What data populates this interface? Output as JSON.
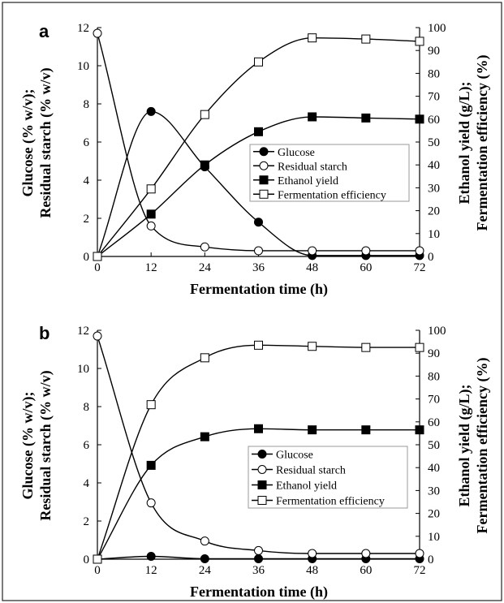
{
  "figure": {
    "border_color": "#222222"
  },
  "chart_data": [
    {
      "type": "line",
      "panel_label": "a",
      "xlabel": "Fermentation time (h)",
      "ylabel_left": [
        "Glucose (% w/v);",
        "Residual starch (% w/v)"
      ],
      "ylabel_right": [
        "Ethanol yield (g/L);",
        "Fermentation efficiency (%)"
      ],
      "x": [
        0,
        12,
        24,
        36,
        48,
        60,
        72
      ],
      "xlim": [
        0,
        72
      ],
      "xticks": [
        "0",
        "12",
        "24",
        "36",
        "48",
        "60",
        "72"
      ],
      "ylim_left": [
        0,
        12
      ],
      "yticks_left": [
        "0",
        "2",
        "4",
        "6",
        "8",
        "10",
        "12"
      ],
      "ylim_right": [
        0,
        100
      ],
      "yticks_right": [
        "0",
        "10",
        "20",
        "30",
        "40",
        "50",
        "60",
        "70",
        "80",
        "90",
        "100"
      ],
      "legend_position": "center-right",
      "series": [
        {
          "name": "Glucose",
          "axis": "left",
          "marker": "filled-circle",
          "values": [
            0,
            7.6,
            4.7,
            1.8,
            0.05,
            0.05,
            0.05
          ]
        },
        {
          "name": "Residual starch",
          "axis": "left",
          "marker": "open-circle",
          "values": [
            11.7,
            1.6,
            0.5,
            0.3,
            0.3,
            0.3,
            0.3
          ]
        },
        {
          "name": "Ethanol yield",
          "axis": "right",
          "marker": "filled-square",
          "values": [
            0,
            18.5,
            40,
            54.5,
            61,
            60.5,
            60
          ]
        },
        {
          "name": "Fermentation efficiency",
          "axis": "right",
          "marker": "open-square",
          "values": [
            0,
            29.5,
            62,
            85,
            95.5,
            95,
            94
          ]
        }
      ]
    },
    {
      "type": "line",
      "panel_label": "b",
      "xlabel": "Fermentation time (h)",
      "ylabel_left": [
        "Glucose (%  w/v);",
        "Residual starch (%  w/v)"
      ],
      "ylabel_right": [
        "Ethanol yield (g/L);",
        "Fermentation efficiency (%)"
      ],
      "x": [
        0,
        12,
        24,
        36,
        48,
        60,
        72
      ],
      "xlim": [
        0,
        72
      ],
      "xticks": [
        "0",
        "12",
        "24",
        "36",
        "48",
        "60",
        "72"
      ],
      "ylim_left": [
        0,
        12
      ],
      "yticks_left": [
        "0",
        "2",
        "4",
        "6",
        "8",
        "10",
        "12"
      ],
      "ylim_right": [
        0,
        100
      ],
      "yticks_right": [
        "0",
        "10",
        "20",
        "30",
        "40",
        "50",
        "60",
        "70",
        "80",
        "90",
        "100"
      ],
      "legend_position": "lower-right",
      "series": [
        {
          "name": "Glucose",
          "axis": "left",
          "marker": "filled-circle",
          "values": [
            0,
            0.15,
            0.02,
            0.02,
            0.02,
            0.02,
            0.02
          ]
        },
        {
          "name": "Residual starch",
          "axis": "left",
          "marker": "open-circle",
          "values": [
            11.7,
            2.95,
            0.95,
            0.45,
            0.3,
            0.3,
            0.3
          ]
        },
        {
          "name": "Ethanol yield",
          "axis": "right",
          "marker": "filled-square",
          "values": [
            0,
            41,
            53.5,
            57,
            56.5,
            56.5,
            56.5
          ]
        },
        {
          "name": "Fermentation efficiency",
          "axis": "right",
          "marker": "open-square",
          "values": [
            0,
            67.5,
            88,
            93.5,
            93,
            92.5,
            92.5
          ]
        }
      ]
    }
  ]
}
